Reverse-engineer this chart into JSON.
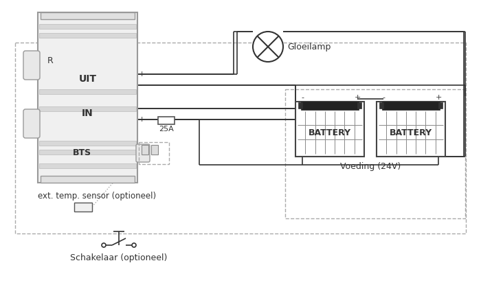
{
  "bg_color": "#ffffff",
  "line_color": "#333333",
  "light_gray": "#d8d8d8",
  "mid_gray": "#aaaaaa",
  "dark_gray": "#666666",
  "battery_label": "BATTERY",
  "label_voeding": "Voeding (24V)",
  "label_gloeilamp": "Gloeilamp",
  "label_uit": "UIT",
  "label_in": "IN",
  "label_bts": "BTS",
  "label_r": "R",
  "label_25a": "25A",
  "label_ext": "ext. temp. sensor (optioneel)",
  "label_schakelaar": "Schakelaar (optioneel)"
}
